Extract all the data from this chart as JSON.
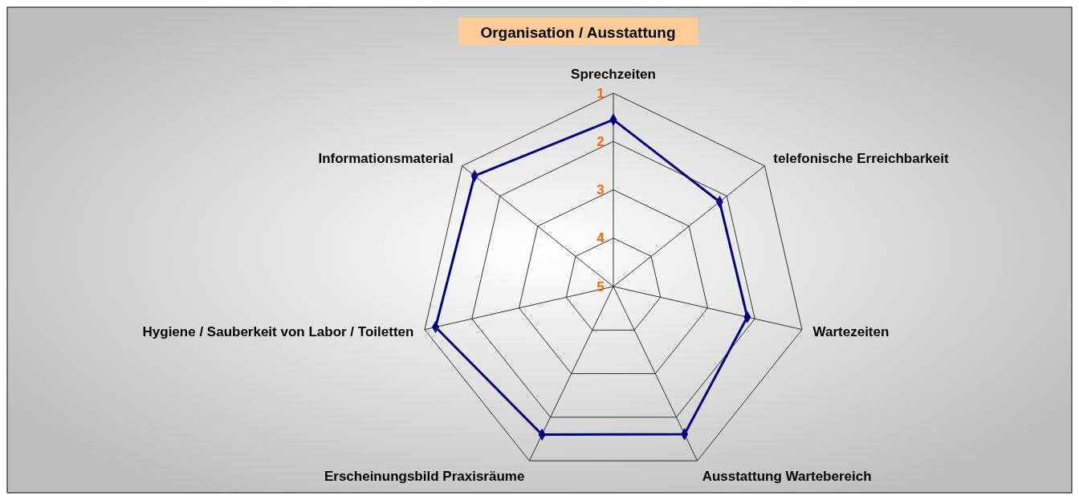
{
  "chart_data": {
    "type": "radar",
    "title": "Organisation / Ausstattung",
    "categories": [
      "Sprechzeiten",
      "telefonische Erreichbarkeit",
      "Wartezeiten",
      "Ausstattung Wartebereich",
      "Erscheinungsbild Praxisräume",
      "Hygiene / Sauberkeit von Labor / Toiletten",
      "Informationsmaterial"
    ],
    "series": [
      {
        "color": "#000080",
        "values": [
          1.55,
          2.19,
          2.16,
          1.61,
          1.6,
          1.23,
          1.33
        ]
      }
    ],
    "ylim": [
      5,
      1
    ],
    "yticks": [
      1,
      2,
      3,
      4,
      5
    ],
    "grid": true,
    "marker": "diamond",
    "line_style": "solid"
  }
}
